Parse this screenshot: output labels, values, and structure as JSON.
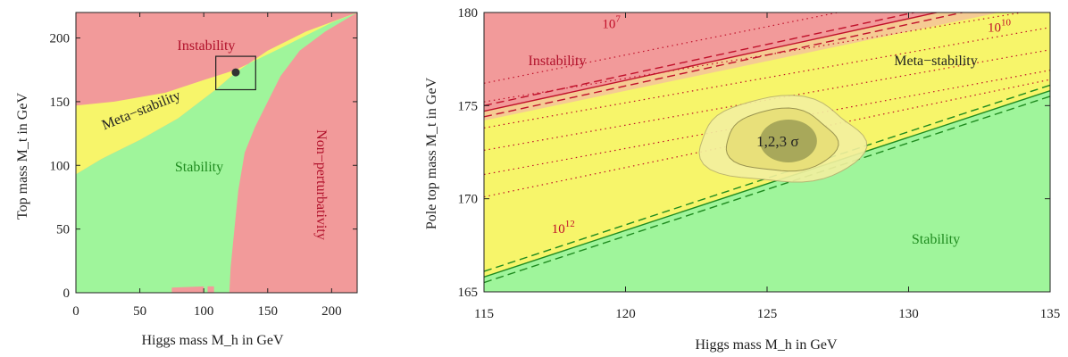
{
  "colors": {
    "instability": "#f29a9a",
    "metastability": "#f7f56a",
    "stability": "#9ff59b",
    "instability_text": "#b0102a",
    "stability_text": "#1f8b1f",
    "contour_text": "#c0102a",
    "ellipse_fill": "#f3f0a0",
    "ellipse_mid": "#e8e07a",
    "ellipse_core": "#a8a85a"
  },
  "chart_data": [
    {
      "type": "area",
      "title": "",
      "xlabel": "Higgs mass M_h in GeV",
      "ylabel": "Top mass M_t in GeV",
      "xlim": [
        0,
        220
      ],
      "ylim": [
        0,
        220
      ],
      "xticks": [
        "0",
        "50",
        "100",
        "150",
        "200"
      ],
      "yticks": [
        "0",
        "50",
        "100",
        "150",
        "200"
      ],
      "regions": [
        {
          "name": "Instability",
          "color": "instability"
        },
        {
          "name": "Meta−stability",
          "color": "metastability"
        },
        {
          "name": "Stability",
          "color": "stability"
        },
        {
          "name": "Non−perturbativity",
          "color": "instability"
        }
      ],
      "boundaries": {
        "stability_upper": [
          [
            0,
            93
          ],
          [
            20,
            105
          ],
          [
            50,
            120
          ],
          [
            80,
            137
          ],
          [
            110,
            160
          ],
          [
            125,
            173
          ],
          [
            150,
            190
          ],
          [
            180,
            205
          ],
          [
            220,
            220
          ]
        ],
        "metastability_upper": [
          [
            0,
            147
          ],
          [
            30,
            150
          ],
          [
            70,
            157
          ],
          [
            100,
            167
          ],
          [
            125,
            175
          ],
          [
            160,
            192
          ],
          [
            200,
            212
          ],
          [
            220,
            220
          ]
        ],
        "nonpert_left": [
          [
            220,
            220
          ],
          [
            195,
            205
          ],
          [
            175,
            190
          ],
          [
            160,
            170
          ],
          [
            150,
            150
          ],
          [
            140,
            130
          ],
          [
            132,
            110
          ],
          [
            127,
            80
          ],
          [
            124,
            50
          ],
          [
            121,
            20
          ],
          [
            120,
            0
          ]
        ],
        "nonpert_right": [
          [
            220,
            220
          ],
          [
            205,
            202
          ],
          [
            185,
            180
          ],
          [
            172,
            155
          ],
          [
            166,
            120
          ],
          [
            163,
            80
          ],
          [
            161,
            40
          ],
          [
            159,
            12
          ],
          [
            130,
            6
          ],
          [
            126,
            2
          ]
        ],
        "low_sliver": [
          [
            75,
            4
          ],
          [
            118,
            6
          ]
        ]
      },
      "marker": {
        "x": 125,
        "y": 173
      },
      "zoom_box": {
        "x": [
          115,
          135
        ],
        "y": [
          165,
          180
        ]
      }
    },
    {
      "type": "area",
      "title": "",
      "xlabel": "Higgs mass M_h in GeV",
      "ylabel": "Pole top mass M_t in GeV",
      "xlim": [
        115,
        135
      ],
      "ylim": [
        165,
        180
      ],
      "xticks": [
        "115",
        "120",
        "125",
        "130",
        "135"
      ],
      "yticks": [
        "165",
        "170",
        "175",
        "180"
      ],
      "regions": [
        {
          "name": "Instability",
          "color": "instability"
        },
        {
          "name": "Meta−stability",
          "color": "metastability"
        },
        {
          "name": "Stability",
          "color": "stability"
        }
      ],
      "boundaries": {
        "instability_lower": [
          [
            115,
            174.7
          ],
          [
            131,
            180
          ]
        ],
        "stability_upper": [
          [
            115,
            165.8
          ],
          [
            135,
            175.8
          ]
        ]
      },
      "lifetime_contour_labels": [
        {
          "base": "10",
          "exp": "7",
          "x": 119.5,
          "y": 179.4
        },
        {
          "base": "10",
          "exp": "10",
          "x": 133.2,
          "y": 179.2
        },
        {
          "base": "10",
          "exp": "12",
          "x": 117.8,
          "y": 168.4
        }
      ],
      "ellipse": {
        "center_x": 125.5,
        "center_y": 173.1,
        "label": "1,2,3 σ"
      },
      "region_labels": {
        "instability": "Instability",
        "metastability": "Meta−stability",
        "stability": "Stability"
      }
    }
  ]
}
